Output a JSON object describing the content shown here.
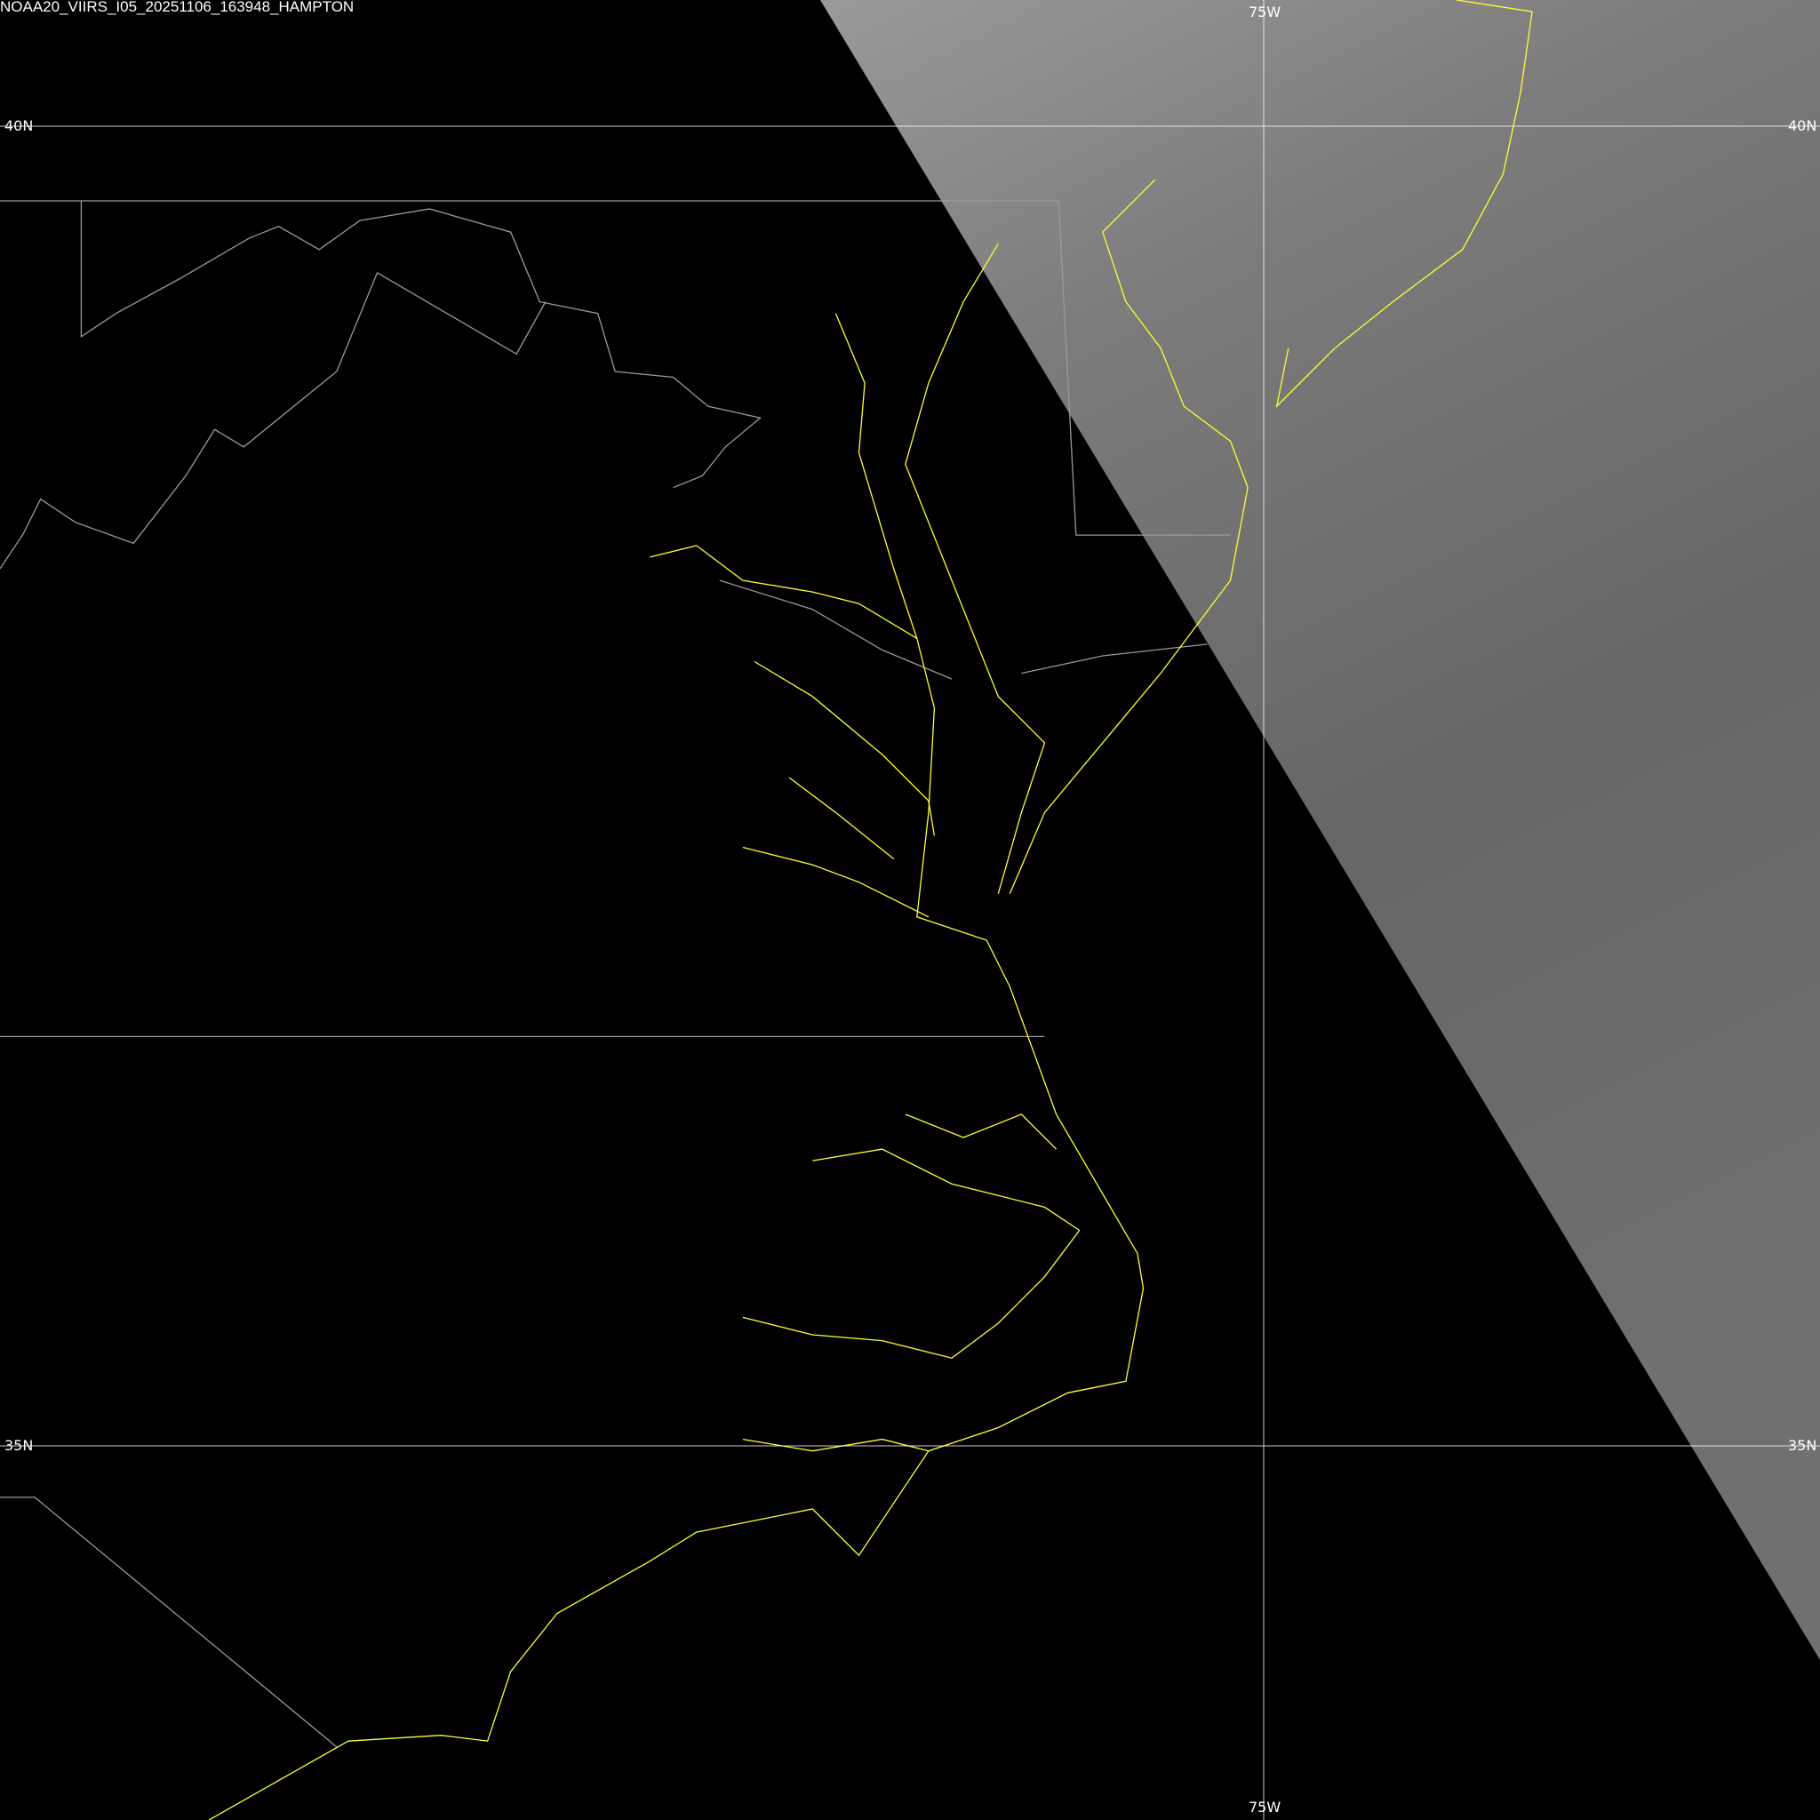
{
  "title": "NOAA20_VIIRS_I05_20251106_163948_HAMPTON",
  "grid": {
    "lat_labels": [
      "40N",
      "35N"
    ],
    "lon_labels": [
      "75W"
    ]
  },
  "colors": {
    "background": "#000000",
    "coastline": "#ffff33",
    "borders": "#9a9a9a",
    "grid": "#ffffff",
    "swath": "#7a7a7a"
  }
}
